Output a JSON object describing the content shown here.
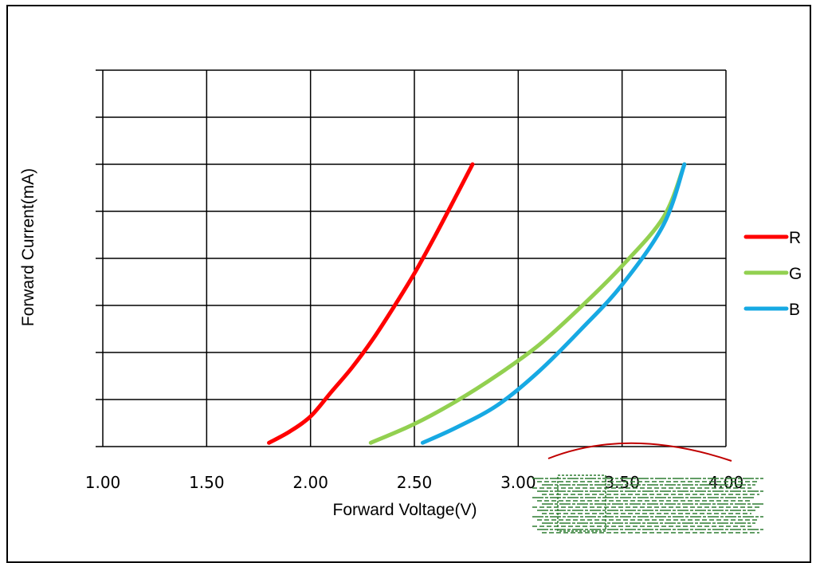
{
  "chart_data": {
    "type": "line",
    "xlabel": "Forward Voltage(V)",
    "ylabel": "Forward Current(mA)",
    "xlim": [
      1.0,
      4.0
    ],
    "x_ticks": [
      "1.00",
      "1.50",
      "2.00",
      "2.50",
      "3.00",
      "3.50",
      "4.00"
    ],
    "y_tick_labels_shown": false,
    "grid": true,
    "legend_position": "right",
    "series": [
      {
        "name": "R",
        "color": "#ff0000",
        "x": [
          1.8,
          1.9,
          2.0,
          2.1,
          2.2,
          2.3,
          2.4,
          2.5,
          2.6,
          2.7,
          2.78
        ],
        "y_fraction": [
          0.01,
          0.04,
          0.08,
          0.145,
          0.21,
          0.285,
          0.37,
          0.46,
          0.56,
          0.665,
          0.75
        ]
      },
      {
        "name": "G",
        "color": "#92d050",
        "x": [
          2.29,
          2.5,
          2.7,
          2.9,
          3.1,
          3.3,
          3.5,
          3.7,
          3.8
        ],
        "y_fraction": [
          0.01,
          0.06,
          0.12,
          0.19,
          0.27,
          0.37,
          0.48,
          0.61,
          0.75
        ]
      },
      {
        "name": "B",
        "color": "#17a9e3",
        "x": [
          2.54,
          2.7,
          2.9,
          3.1,
          3.3,
          3.5,
          3.7,
          3.8
        ],
        "y_fraction": [
          0.01,
          0.05,
          0.11,
          0.2,
          0.31,
          0.43,
          0.59,
          0.75
        ]
      }
    ]
  }
}
